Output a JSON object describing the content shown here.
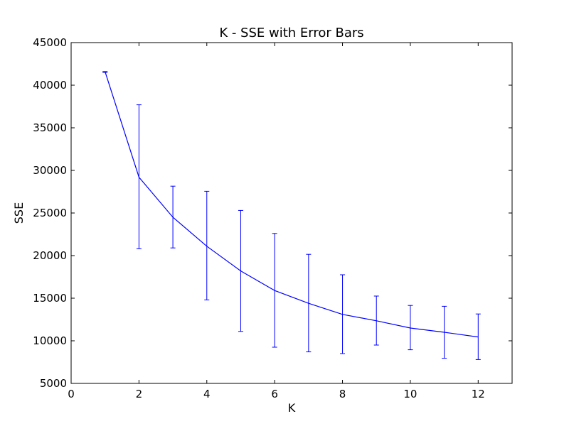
{
  "chart_data": {
    "type": "line",
    "title": "K - SSE with Error Bars",
    "xlabel": "K",
    "ylabel": "SSE",
    "xlim": [
      0,
      13
    ],
    "ylim": [
      5000,
      45000
    ],
    "xticks": [
      0,
      2,
      4,
      6,
      8,
      10,
      12
    ],
    "yticks": [
      5000,
      10000,
      15000,
      20000,
      25000,
      30000,
      35000,
      40000,
      45000
    ],
    "grid": false,
    "line_color": "#0000ff",
    "series": [
      {
        "x": [
          1,
          2,
          3,
          4,
          5,
          6,
          7,
          8,
          9,
          10,
          11,
          12
        ],
        "y": [
          41600,
          29200,
          24500,
          21100,
          18200,
          15900,
          14400,
          13100,
          12350,
          11500,
          11000,
          10450
        ],
        "err_low": [
          41500,
          20800,
          20900,
          14800,
          11100,
          9250,
          8700,
          8500,
          9500,
          8950,
          7950,
          7800
        ],
        "err_high": [
          41600,
          37700,
          28150,
          27550,
          25300,
          22600,
          20150,
          17750,
          15250,
          14150,
          14050,
          13150
        ]
      }
    ]
  }
}
